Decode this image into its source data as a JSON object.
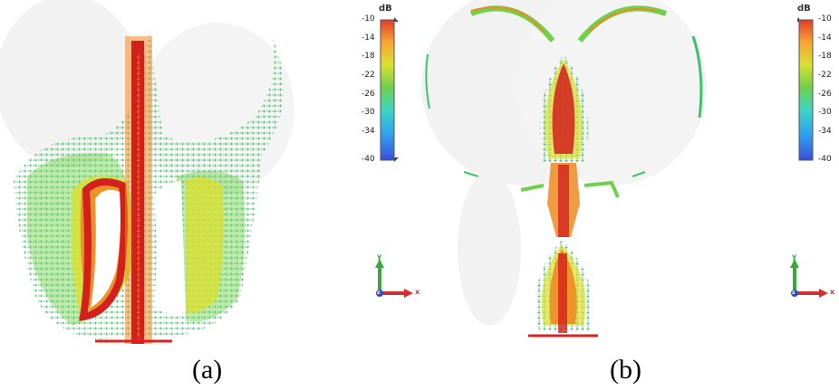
{
  "panels": [
    {
      "caption": "(a)"
    },
    {
      "caption": "(b)"
    }
  ],
  "colorbar": {
    "unit": "dB",
    "ticks": [
      "-10",
      "-14",
      "-18",
      "-22",
      "-26",
      "-30",
      "-34",
      "-40"
    ],
    "min": -40,
    "max": -10,
    "colors": [
      "#3a4fe0",
      "#2f9ff0",
      "#3ad6c8",
      "#6fd04a",
      "#d9e030",
      "#f8a530",
      "#e23a2a"
    ]
  },
  "axes_triad": {
    "y": "y",
    "x": "x",
    "z": "z"
  },
  "colors": {
    "hot": "#d3201c",
    "warm": "#f08a24",
    "mid": "#d7d637",
    "cool": "#3fc26a",
    "cold": "#36b8c8",
    "background_shape": "#f2f2f2",
    "feed_line": "#e02020"
  }
}
